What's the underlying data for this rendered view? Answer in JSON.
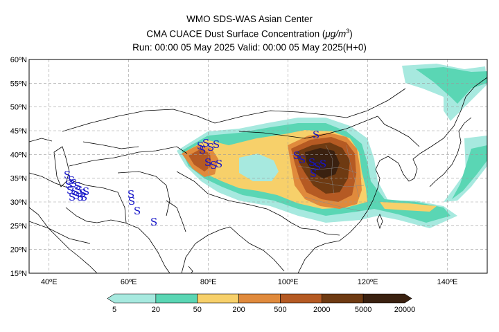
{
  "title": {
    "line1": "WMO SDS-WAS Asian Center",
    "line2_prefix": "CMA CUACE Dust Surface Concentration (",
    "line2_unit": "μg/m",
    "line2_exp": "3",
    "line2_suffix": ")",
    "line3": "Run: 00:00 05 May 2025    Valid: 00:00 05 May 2025(H+0)"
  },
  "map": {
    "projection": "lat-lon",
    "extent": {
      "lon": [
        35,
        150
      ],
      "lat": [
        15,
        60
      ]
    },
    "gridlines": true,
    "lat_labels": [
      "60ºN",
      "55ºN",
      "50ºN",
      "45ºN",
      "40ºN",
      "35ºN",
      "30ºN",
      "25ºN",
      "20ºN",
      "15ºN"
    ],
    "lat_values": [
      60,
      55,
      50,
      45,
      40,
      35,
      30,
      25,
      20,
      15
    ],
    "lon_labels": [
      "40ºE",
      "60ºE",
      "80ºE",
      "100ºE",
      "120ºE",
      "140ºE"
    ],
    "lon_values": [
      40,
      60,
      80,
      100,
      120,
      140
    ]
  },
  "colorbar": {
    "labels": [
      "5",
      "20",
      "50",
      "200",
      "500",
      "2000",
      "5000",
      "20000"
    ],
    "colors": [
      "#a7e9df",
      "#5ad6b4",
      "#f7d06a",
      "#e08a3c",
      "#b55a23",
      "#6e3a12",
      "#3a2110"
    ]
  },
  "station_symbol": "S"
}
